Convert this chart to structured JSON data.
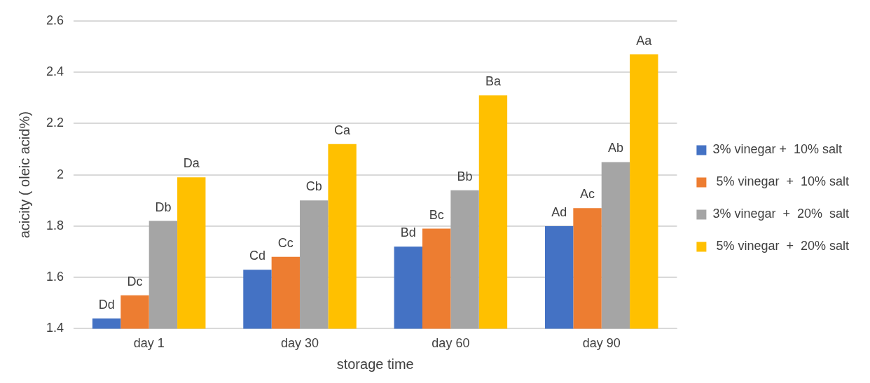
{
  "chart_data": {
    "type": "bar",
    "xlabel": "storage time",
    "ylabel": "acicity ( oleic acid%)",
    "categories": [
      "day 1",
      "day 30",
      "day 60",
      "day 90"
    ],
    "series": [
      {
        "name": "3% vinegar +  10% salt",
        "color": "#4472c4",
        "values": [
          1.44,
          1.63,
          1.72,
          1.8
        ],
        "value_labels": [
          "Dd",
          "Cd",
          "Bd",
          "Ad"
        ]
      },
      {
        "name": " 5% vinegar  +  10% salt",
        "color": "#ed7d31",
        "values": [
          1.53,
          1.68,
          1.79,
          1.87
        ],
        "value_labels": [
          "Dc",
          "Cc",
          "Bc",
          "Ac"
        ]
      },
      {
        "name": "3% vinegar  +  20%  salt",
        "color": "#a5a5a5",
        "values": [
          1.82,
          1.9,
          1.94,
          2.05
        ],
        "value_labels": [
          "Db",
          "Cb",
          "Bb",
          "Ab"
        ]
      },
      {
        "name": " 5% vinegar  +  20% salt",
        "color": "#ffc000",
        "values": [
          1.99,
          2.12,
          2.31,
          2.47
        ],
        "value_labels": [
          "Da",
          "Ca",
          "Ba",
          "Aa"
        ]
      }
    ],
    "ylim": [
      1.4,
      2.6
    ],
    "yticks": [
      {
        "value": 1.4,
        "label": "1.4"
      },
      {
        "value": 1.6,
        "label": "1.6"
      },
      {
        "value": 1.8,
        "label": "1.8"
      },
      {
        "value": 2.0,
        "label": "2"
      },
      {
        "value": 2.2,
        "label": "2.2"
      },
      {
        "value": 2.4,
        "label": "2.4"
      },
      {
        "value": 2.6,
        "label": "2.6"
      }
    ],
    "grid": "y",
    "legend": "right"
  }
}
